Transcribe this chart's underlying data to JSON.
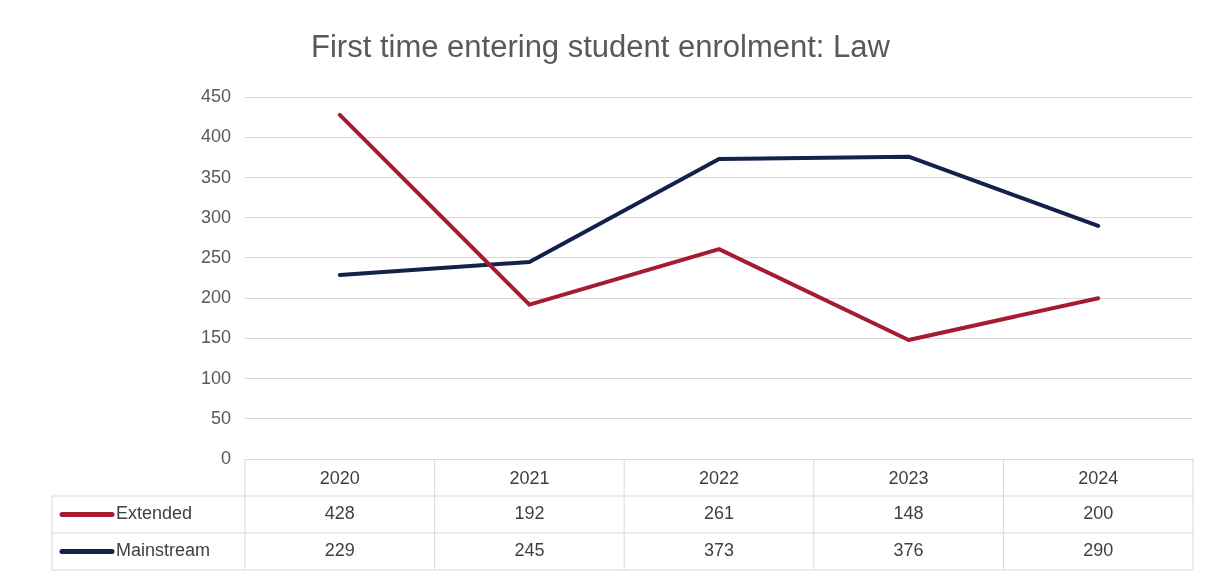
{
  "chart_data": {
    "type": "line",
    "title": "First time entering student enrolment: Law",
    "categories": [
      "2020",
      "2021",
      "2022",
      "2023",
      "2024"
    ],
    "series": [
      {
        "name": "Extended",
        "color": "#a51c30",
        "values": [
          428,
          192,
          261,
          148,
          200
        ]
      },
      {
        "name": "Mainstream",
        "color": "#14214d",
        "values": [
          229,
          245,
          373,
          376,
          290
        ]
      }
    ],
    "ylim": [
      0,
      450
    ],
    "yticks": [
      0,
      50,
      100,
      150,
      200,
      250,
      300,
      350,
      400,
      450
    ],
    "grid": "y",
    "legend": "bottom",
    "data_labels": true,
    "marker": "none",
    "line_style": "solid"
  }
}
